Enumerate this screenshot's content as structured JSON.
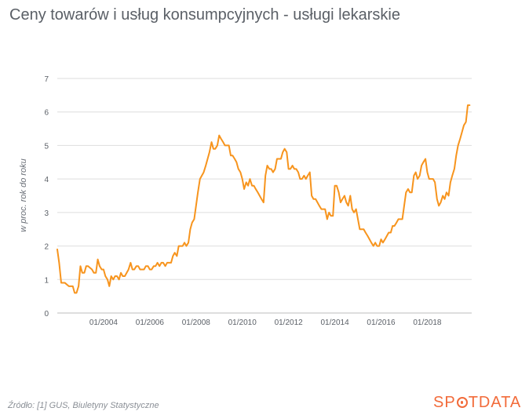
{
  "chart_data": {
    "type": "line",
    "title": "Ceny towarów i usług konsumpcyjnych - usługi lekarskie",
    "ylabel": "w proc. rok do roku",
    "ylim": [
      0,
      7
    ],
    "yticks": [
      "0",
      "1",
      "2",
      "3",
      "4",
      "5",
      "6",
      "7"
    ],
    "xlim": [
      2002.0,
      2019.92
    ],
    "xticks": [
      {
        "label": "01/2004",
        "x": 2004.0
      },
      {
        "label": "01/2006",
        "x": 2006.0
      },
      {
        "label": "01/2008",
        "x": 2008.0
      },
      {
        "label": "01/2010",
        "x": 2010.0
      },
      {
        "label": "01/2012",
        "x": 2012.0
      },
      {
        "label": "01/2014",
        "x": 2014.0
      },
      {
        "label": "01/2016",
        "x": 2016.0
      },
      {
        "label": "01/2018",
        "x": 2018.0
      }
    ],
    "grid": true,
    "line_color": "#f7941d",
    "series": [
      {
        "points": [
          [
            2002.0,
            1.9
          ],
          [
            2002.08,
            1.5
          ],
          [
            2002.17,
            0.9
          ],
          [
            2002.33,
            0.9
          ],
          [
            2002.5,
            0.8
          ],
          [
            2002.67,
            0.8
          ],
          [
            2002.75,
            0.6
          ],
          [
            2002.83,
            0.6
          ],
          [
            2002.92,
            0.8
          ],
          [
            2003.0,
            1.4
          ],
          [
            2003.08,
            1.2
          ],
          [
            2003.17,
            1.2
          ],
          [
            2003.25,
            1.4
          ],
          [
            2003.33,
            1.4
          ],
          [
            2003.5,
            1.3
          ],
          [
            2003.58,
            1.2
          ],
          [
            2003.67,
            1.2
          ],
          [
            2003.75,
            1.6
          ],
          [
            2003.83,
            1.4
          ],
          [
            2003.92,
            1.3
          ],
          [
            2004.0,
            1.3
          ],
          [
            2004.08,
            1.1
          ],
          [
            2004.17,
            1.0
          ],
          [
            2004.25,
            0.8
          ],
          [
            2004.33,
            1.1
          ],
          [
            2004.42,
            1.0
          ],
          [
            2004.5,
            1.1
          ],
          [
            2004.58,
            1.1
          ],
          [
            2004.67,
            1.0
          ],
          [
            2004.75,
            1.2
          ],
          [
            2004.83,
            1.1
          ],
          [
            2004.92,
            1.1
          ],
          [
            2005.0,
            1.2
          ],
          [
            2005.08,
            1.3
          ],
          [
            2005.17,
            1.5
          ],
          [
            2005.25,
            1.3
          ],
          [
            2005.33,
            1.3
          ],
          [
            2005.42,
            1.4
          ],
          [
            2005.5,
            1.4
          ],
          [
            2005.58,
            1.3
          ],
          [
            2005.67,
            1.3
          ],
          [
            2005.75,
            1.3
          ],
          [
            2005.83,
            1.4
          ],
          [
            2005.92,
            1.4
          ],
          [
            2006.0,
            1.3
          ],
          [
            2006.08,
            1.3
          ],
          [
            2006.17,
            1.4
          ],
          [
            2006.25,
            1.4
          ],
          [
            2006.33,
            1.5
          ],
          [
            2006.42,
            1.4
          ],
          [
            2006.5,
            1.5
          ],
          [
            2006.58,
            1.5
          ],
          [
            2006.67,
            1.4
          ],
          [
            2006.75,
            1.5
          ],
          [
            2006.83,
            1.5
          ],
          [
            2006.92,
            1.5
          ],
          [
            2007.0,
            1.7
          ],
          [
            2007.08,
            1.8
          ],
          [
            2007.17,
            1.7
          ],
          [
            2007.25,
            2.0
          ],
          [
            2007.33,
            2.0
          ],
          [
            2007.42,
            2.0
          ],
          [
            2007.5,
            2.1
          ],
          [
            2007.58,
            2.0
          ],
          [
            2007.67,
            2.1
          ],
          [
            2007.75,
            2.5
          ],
          [
            2007.83,
            2.7
          ],
          [
            2007.92,
            2.8
          ],
          [
            2008.0,
            3.2
          ],
          [
            2008.08,
            3.6
          ],
          [
            2008.17,
            4.0
          ],
          [
            2008.25,
            4.1
          ],
          [
            2008.33,
            4.2
          ],
          [
            2008.42,
            4.4
          ],
          [
            2008.5,
            4.6
          ],
          [
            2008.58,
            4.8
          ],
          [
            2008.67,
            5.1
          ],
          [
            2008.75,
            4.9
          ],
          [
            2008.83,
            4.9
          ],
          [
            2008.92,
            5.0
          ],
          [
            2009.0,
            5.3
          ],
          [
            2009.08,
            5.2
          ],
          [
            2009.17,
            5.1
          ],
          [
            2009.25,
            5.0
          ],
          [
            2009.33,
            5.0
          ],
          [
            2009.42,
            5.0
          ],
          [
            2009.5,
            4.7
          ],
          [
            2009.58,
            4.7
          ],
          [
            2009.67,
            4.6
          ],
          [
            2009.75,
            4.5
          ],
          [
            2009.83,
            4.3
          ],
          [
            2009.92,
            4.2
          ],
          [
            2010.0,
            4.0
          ],
          [
            2010.08,
            3.7
          ],
          [
            2010.17,
            3.9
          ],
          [
            2010.25,
            3.8
          ],
          [
            2010.33,
            4.0
          ],
          [
            2010.42,
            3.8
          ],
          [
            2010.5,
            3.8
          ],
          [
            2010.58,
            3.7
          ],
          [
            2010.67,
            3.6
          ],
          [
            2010.75,
            3.5
          ],
          [
            2010.83,
            3.4
          ],
          [
            2010.92,
            3.3
          ],
          [
            2011.0,
            4.1
          ],
          [
            2011.08,
            4.4
          ],
          [
            2011.17,
            4.3
          ],
          [
            2011.25,
            4.3
          ],
          [
            2011.33,
            4.2
          ],
          [
            2011.42,
            4.3
          ],
          [
            2011.5,
            4.6
          ],
          [
            2011.58,
            4.6
          ],
          [
            2011.67,
            4.6
          ],
          [
            2011.75,
            4.8
          ],
          [
            2011.83,
            4.9
          ],
          [
            2011.92,
            4.8
          ],
          [
            2012.0,
            4.3
          ],
          [
            2012.08,
            4.3
          ],
          [
            2012.17,
            4.4
          ],
          [
            2012.25,
            4.3
          ],
          [
            2012.33,
            4.3
          ],
          [
            2012.42,
            4.2
          ],
          [
            2012.5,
            4.0
          ],
          [
            2012.58,
            4.0
          ],
          [
            2012.67,
            4.1
          ],
          [
            2012.75,
            4.0
          ],
          [
            2012.83,
            4.1
          ],
          [
            2012.92,
            4.2
          ],
          [
            2013.0,
            3.5
          ],
          [
            2013.08,
            3.4
          ],
          [
            2013.17,
            3.4
          ],
          [
            2013.25,
            3.3
          ],
          [
            2013.33,
            3.2
          ],
          [
            2013.42,
            3.1
          ],
          [
            2013.5,
            3.1
          ],
          [
            2013.58,
            3.1
          ],
          [
            2013.67,
            2.8
          ],
          [
            2013.75,
            3.0
          ],
          [
            2013.83,
            2.9
          ],
          [
            2013.92,
            2.9
          ],
          [
            2014.0,
            3.8
          ],
          [
            2014.08,
            3.8
          ],
          [
            2014.17,
            3.6
          ],
          [
            2014.25,
            3.3
          ],
          [
            2014.33,
            3.4
          ],
          [
            2014.42,
            3.5
          ],
          [
            2014.5,
            3.3
          ],
          [
            2014.58,
            3.2
          ],
          [
            2014.67,
            3.5
          ],
          [
            2014.75,
            3.1
          ],
          [
            2014.83,
            3.0
          ],
          [
            2014.92,
            3.1
          ],
          [
            2015.0,
            2.8
          ],
          [
            2015.08,
            2.5
          ],
          [
            2015.17,
            2.5
          ],
          [
            2015.25,
            2.5
          ],
          [
            2015.33,
            2.4
          ],
          [
            2015.42,
            2.3
          ],
          [
            2015.5,
            2.2
          ],
          [
            2015.58,
            2.1
          ],
          [
            2015.67,
            2.0
          ],
          [
            2015.75,
            2.1
          ],
          [
            2015.83,
            2.0
          ],
          [
            2015.92,
            2.0
          ],
          [
            2016.0,
            2.2
          ],
          [
            2016.08,
            2.1
          ],
          [
            2016.17,
            2.2
          ],
          [
            2016.25,
            2.3
          ],
          [
            2016.33,
            2.4
          ],
          [
            2016.42,
            2.4
          ],
          [
            2016.5,
            2.6
          ],
          [
            2016.58,
            2.6
          ],
          [
            2016.67,
            2.7
          ],
          [
            2016.75,
            2.8
          ],
          [
            2016.83,
            2.8
          ],
          [
            2016.92,
            2.8
          ],
          [
            2017.0,
            3.2
          ],
          [
            2017.08,
            3.6
          ],
          [
            2017.17,
            3.7
          ],
          [
            2017.25,
            3.6
          ],
          [
            2017.33,
            3.6
          ],
          [
            2017.42,
            4.1
          ],
          [
            2017.5,
            4.2
          ],
          [
            2017.58,
            4.0
          ],
          [
            2017.67,
            4.1
          ],
          [
            2017.75,
            4.4
          ],
          [
            2017.83,
            4.5
          ],
          [
            2017.92,
            4.6
          ],
          [
            2018.0,
            4.2
          ],
          [
            2018.08,
            4.0
          ],
          [
            2018.17,
            4.0
          ],
          [
            2018.25,
            4.0
          ],
          [
            2018.33,
            3.9
          ],
          [
            2018.42,
            3.4
          ],
          [
            2018.5,
            3.2
          ],
          [
            2018.58,
            3.3
          ],
          [
            2018.67,
            3.5
          ],
          [
            2018.75,
            3.4
          ],
          [
            2018.83,
            3.6
          ],
          [
            2018.92,
            3.5
          ],
          [
            2019.0,
            3.9
          ],
          [
            2019.08,
            4.1
          ],
          [
            2019.17,
            4.3
          ],
          [
            2019.25,
            4.7
          ],
          [
            2019.33,
            5.0
          ],
          [
            2019.42,
            5.2
          ],
          [
            2019.5,
            5.4
          ],
          [
            2019.58,
            5.6
          ],
          [
            2019.67,
            5.7
          ],
          [
            2019.75,
            6.2
          ],
          [
            2019.83,
            6.2
          ]
        ]
      }
    ]
  },
  "footer": {
    "source": "Źródło: [1] GUS, Biuletyny Statystyczne",
    "logo_left": "SP",
    "logo_right": "TDATA",
    "logo_color": "#f26b3a"
  }
}
